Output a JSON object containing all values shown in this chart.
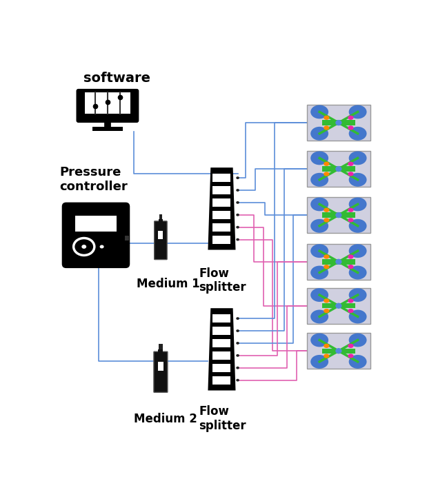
{
  "bg_color": "#ffffff",
  "blue_line": "#5b8dd9",
  "pink_line": "#e060b0",
  "text_color": "#000000",
  "labels": {
    "software": "software",
    "pressure": "Pressure\ncontroller",
    "medium1": "Medium 1",
    "medium2": "Medium 2",
    "flow_splitter1": "Flow\nsplitter",
    "flow_splitter2": "Flow\nsplitter"
  },
  "n_channels": 6,
  "chip_colors": {
    "body": "#4477cc",
    "orange": "#ff8800",
    "green": "#33bb33",
    "pink": "#ee22aa",
    "bg": "#d0d0e0",
    "center": "#5588dd"
  }
}
